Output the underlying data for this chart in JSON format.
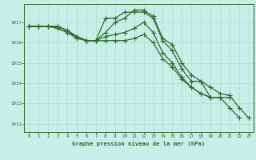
{
  "title": "Graphe pression niveau de la mer (hPa)",
  "background_color": "#c8eee8",
  "grid_color": "#aaddcc",
  "line_color": "#2d6b2d",
  "xlim": [
    -0.5,
    23.5
  ],
  "ylim": [
    1011.6,
    1017.9
  ],
  "yticks": [
    1012,
    1013,
    1014,
    1015,
    1016,
    1017
  ],
  "xticks": [
    0,
    1,
    2,
    3,
    4,
    5,
    6,
    7,
    8,
    9,
    10,
    11,
    12,
    13,
    14,
    15,
    16,
    17,
    18,
    19,
    20,
    21,
    22,
    23
  ],
  "line1_x": [
    0,
    1,
    2,
    3,
    4,
    5,
    6,
    7,
    8,
    9,
    10,
    11,
    12,
    13,
    14,
    15,
    16,
    17,
    18,
    19,
    20,
    21,
    22
  ],
  "line1_y": [
    1016.8,
    1016.8,
    1016.8,
    1016.7,
    1016.5,
    1016.3,
    1016.1,
    1016.1,
    1017.2,
    1017.2,
    1017.5,
    1017.5,
    1017.5,
    1017.2,
    1016.1,
    1015.6,
    1014.7,
    1014.1,
    1014.1,
    1013.3,
    1013.3,
    1012.8,
    1012.3
  ],
  "line2_x": [
    0,
    1,
    2,
    3,
    4,
    5,
    6,
    7,
    8,
    9,
    10,
    11,
    12,
    13,
    14,
    15,
    16,
    17,
    18,
    19,
    20,
    21
  ],
  "line2_y": [
    1016.8,
    1016.8,
    1016.8,
    1016.8,
    1016.6,
    1016.3,
    1016.1,
    1016.1,
    1016.3,
    1016.4,
    1016.5,
    1016.7,
    1017.0,
    1016.5,
    1015.5,
    1015.0,
    1014.3,
    1013.8,
    1013.5,
    1013.3,
    1013.3,
    1013.3
  ],
  "line3_x": [
    0,
    1,
    2,
    3,
    4,
    5,
    6,
    7,
    8,
    9,
    10,
    11,
    12,
    13,
    14,
    15,
    16,
    17,
    18,
    19
  ],
  "line3_y": [
    1016.8,
    1016.8,
    1016.8,
    1016.8,
    1016.6,
    1016.3,
    1016.1,
    1016.1,
    1016.1,
    1016.1,
    1016.1,
    1016.2,
    1016.4,
    1016.0,
    1015.2,
    1014.8,
    1014.2,
    1013.8,
    1013.5,
    1013.3
  ],
  "line4_x": [
    0,
    1,
    2,
    3,
    4,
    5,
    6,
    7,
    8,
    9,
    10,
    11,
    12,
    13,
    14,
    15,
    16,
    17,
    18,
    19,
    20,
    21,
    22,
    23
  ],
  "line4_y": [
    1016.8,
    1016.8,
    1016.8,
    1016.7,
    1016.5,
    1016.2,
    1016.1,
    1016.1,
    1016.5,
    1017.0,
    1017.2,
    1017.6,
    1017.6,
    1017.3,
    1016.2,
    1015.9,
    1015.0,
    1014.4,
    1014.1,
    1013.8,
    1013.5,
    1013.4,
    1012.8,
    1012.3
  ]
}
